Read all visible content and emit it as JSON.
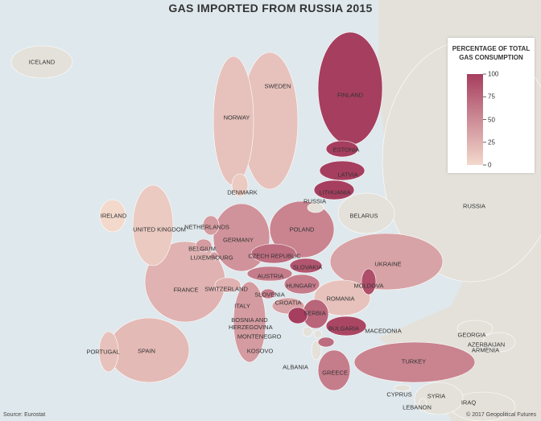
{
  "title": "GAS IMPORTED FROM RUSSIA 2015",
  "legend": {
    "title": "PERCENTAGE OF TOTAL GAS CONSUMPTION",
    "lim": [
      0,
      100
    ],
    "ticks": [
      100,
      75,
      50,
      25,
      0
    ],
    "colors": [
      "#f3d9cc",
      "#a63e5f"
    ]
  },
  "no_data_color": "#e4e1da",
  "countries": [
    {
      "label": "ICELAND",
      "value": null
    },
    {
      "label": "SWEDEN",
      "value": 15
    },
    {
      "label": "NORWAY",
      "value": 15
    },
    {
      "label": "FINLAND",
      "value": 100
    },
    {
      "label": "ESTONIA",
      "value": 100
    },
    {
      "label": "LATVIA",
      "value": 100
    },
    {
      "label": "LITHUANIA",
      "value": 100
    },
    {
      "label": "RUSSIA",
      "value": null
    },
    {
      "label": "BELARUS",
      "value": null
    },
    {
      "label": "RUSSIA",
      "value": null
    },
    {
      "label": "DENMARK",
      "value": 10
    },
    {
      "label": "IRELAND",
      "value": 0
    },
    {
      "label": "UNITED KINGDOM",
      "value": 10
    },
    {
      "label": "NETHERLANDS",
      "value": 40
    },
    {
      "label": "GERMANY",
      "value": 45
    },
    {
      "label": "POLAND",
      "value": 55
    },
    {
      "label": "BELGIUM",
      "value": 40
    },
    {
      "label": "LUXEMBOURG",
      "value": 40
    },
    {
      "label": "CZECH REPUBLIC",
      "value": 70
    },
    {
      "label": "SLOVAKIA",
      "value": 85
    },
    {
      "label": "UKRAINE",
      "value": 35
    },
    {
      "label": "AUSTRIA",
      "value": 60
    },
    {
      "label": "HUNGARY",
      "value": 60
    },
    {
      "label": "MOLDOVA",
      "value": 90
    },
    {
      "label": "FRANCE",
      "value": 25
    },
    {
      "label": "SWITZERLAND",
      "value": 25
    },
    {
      "label": "SLOVENIA",
      "value": 60
    },
    {
      "label": "CROATIA",
      "value": 35
    },
    {
      "label": "ROMANIA",
      "value": 15
    },
    {
      "label": "ITALY",
      "value": 40
    },
    {
      "label": "SERBIA",
      "value": 75
    },
    {
      "label": "BOSNIA AND HERZEGOVINA",
      "value": 100
    },
    {
      "label": "BULGARIA",
      "value": 95
    },
    {
      "label": "MACEDONIA",
      "value": 70
    },
    {
      "label": "MONTENEGRO",
      "value": null
    },
    {
      "label": "PORTUGAL",
      "value": 15
    },
    {
      "label": "SPAIN",
      "value": 20
    },
    {
      "label": "KOSOVO",
      "value": null
    },
    {
      "label": "GEORGIA",
      "value": null
    },
    {
      "label": "AZERBAIJAN",
      "value": null
    },
    {
      "label": "ARMENIA",
      "value": null
    },
    {
      "label": "TURKEY",
      "value": 55
    },
    {
      "label": "ALBANIA",
      "value": null
    },
    {
      "label": "GREECE",
      "value": 60
    },
    {
      "label": "CYPRUS",
      "value": null
    },
    {
      "label": "SYRIA",
      "value": null
    },
    {
      "label": "IRAQ",
      "value": null
    },
    {
      "label": "LEBANON",
      "value": null
    }
  ],
  "source": "Source: Eurostat",
  "credit": "© 2017 Geopolitical Futures"
}
